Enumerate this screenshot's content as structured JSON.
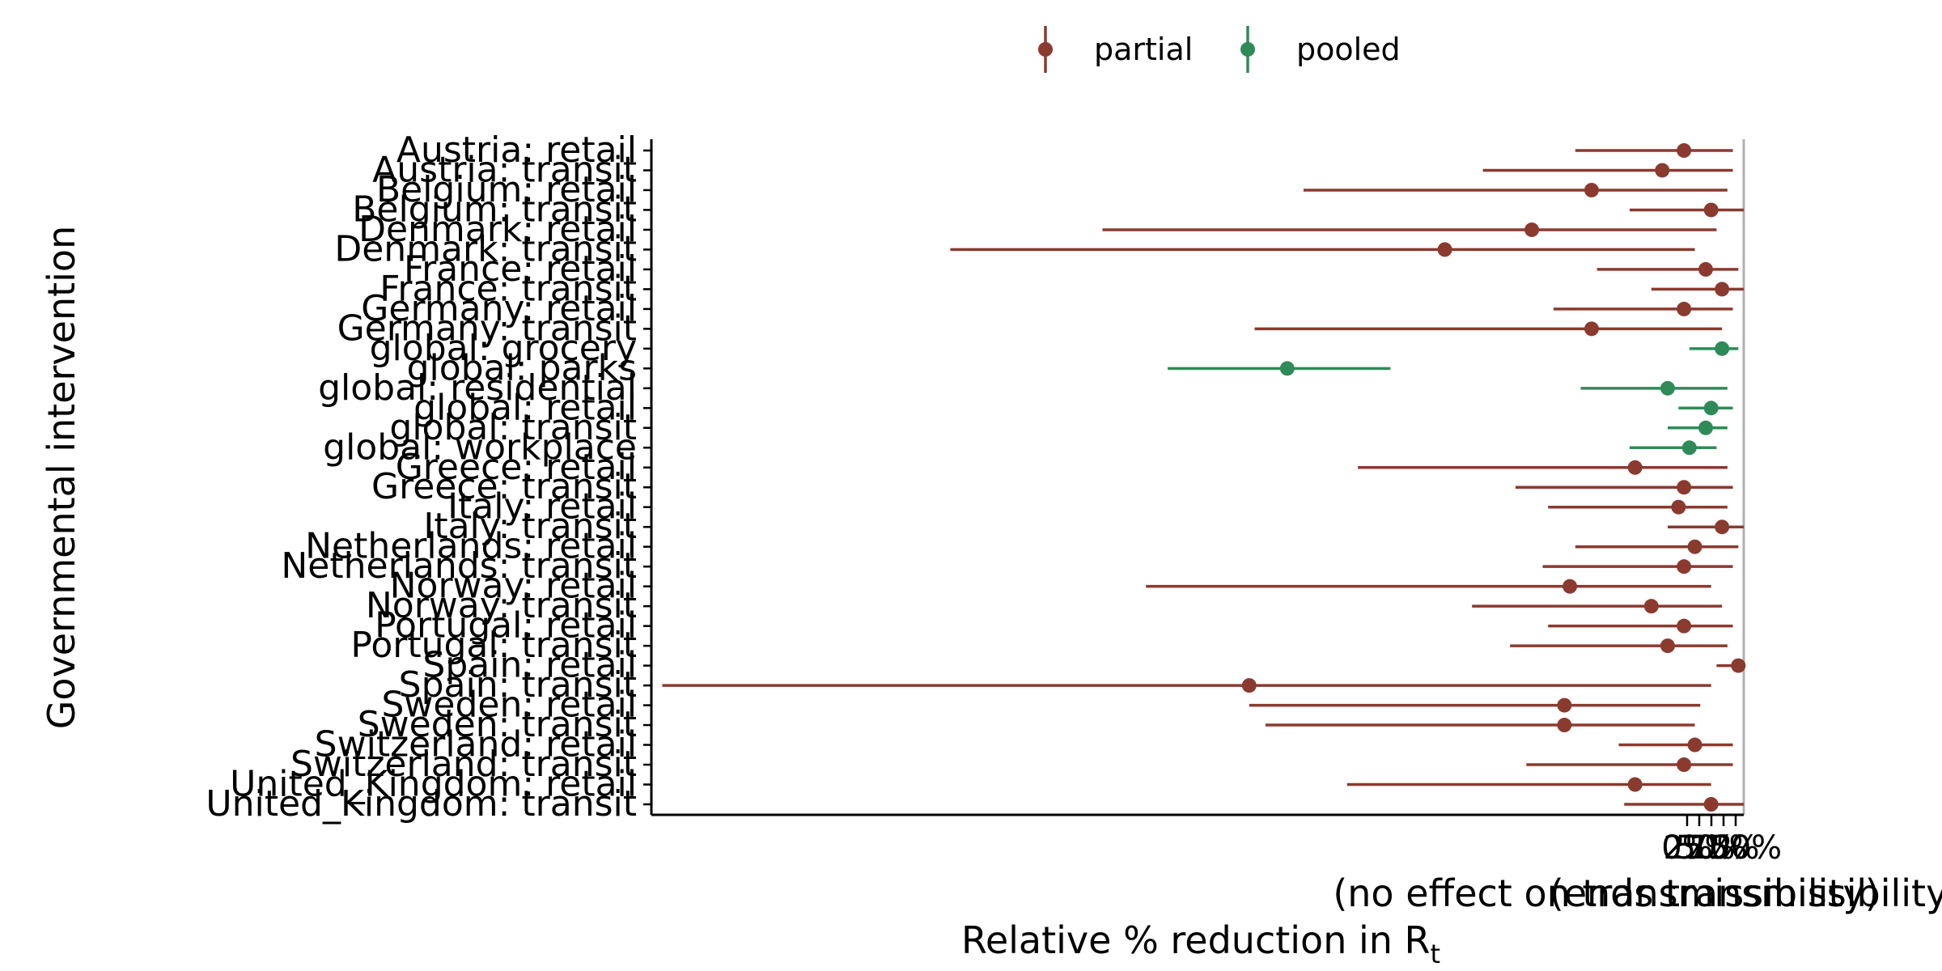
{
  "chart_data": {
    "type": "forest",
    "xlabel": "Relative % reduction in  R",
    "xlabel_subscript": "t",
    "ylabel": "Governmental intervention",
    "x_ticks": [
      "0%",
      "25%",
      "50%",
      "75%",
      "100%"
    ],
    "x_tick_notes": [
      "(no effect on transmissibility)",
      "(ends transmissibility)"
    ],
    "legend": {
      "position": "top",
      "items": [
        {
          "name": "partial",
          "color": "#8b3a2f"
        },
        {
          "name": "pooled",
          "color": "#2e8b57"
        }
      ]
    },
    "categories": [
      "Austria: retail",
      "Austria: transit",
      "Belgium: retail",
      "Belgium: transit",
      "Denmark: retail",
      "Denmark: transit",
      "France: retail",
      "France: transit",
      "Germany: retail",
      "Germany: transit",
      "global: grocery",
      "global: parks",
      "global: residential",
      "global: retail",
      "global: transit",
      "global: workplace",
      "Greece: retail",
      "Greece: transit",
      "Italy: retail",
      "Italy: transit",
      "Netherlands: retail",
      "Netherlands: transit",
      "Norway: retail",
      "Norway: transit",
      "Portugal: retail",
      "Portugal: transit",
      "Spain: retail",
      "Spain: transit",
      "Sweden: retail",
      "Sweden: transit",
      "Switzerland: retail",
      "Switzerland: transit",
      "United_Kingdom: retail",
      "United_Kingdom: transit"
    ],
    "points": [
      {
        "label": "Austria: retail",
        "group": "partial",
        "est": -5.5,
        "lo": -15.5,
        "hi": -1.0
      },
      {
        "label": "Austria: transit",
        "group": "partial",
        "est": -7.5,
        "lo": -24.0,
        "hi": -1.0
      },
      {
        "label": "Belgium: retail",
        "group": "partial",
        "est": -14.0,
        "lo": -40.5,
        "hi": -1.5
      },
      {
        "label": "Belgium: transit",
        "group": "partial",
        "est": -3.0,
        "lo": -10.5,
        "hi": 0.0
      },
      {
        "label": "Denmark: retail",
        "group": "partial",
        "est": -19.5,
        "lo": -59.0,
        "hi": -2.5
      },
      {
        "label": "Denmark: transit",
        "group": "partial",
        "est": -27.5,
        "lo": -73.0,
        "hi": -4.5
      },
      {
        "label": "France: retail",
        "group": "partial",
        "est": -3.5,
        "lo": -13.5,
        "hi": -0.5
      },
      {
        "label": "France: transit",
        "group": "partial",
        "est": -2.0,
        "lo": -8.5,
        "hi": 0.0
      },
      {
        "label": "Germany: retail",
        "group": "partial",
        "est": -5.5,
        "lo": -17.5,
        "hi": -1.0
      },
      {
        "label": "Germany: transit",
        "group": "partial",
        "est": -14.0,
        "lo": -45.0,
        "hi": -2.0
      },
      {
        "label": "global: grocery",
        "group": "pooled",
        "est": -2.0,
        "lo": -5.0,
        "hi": -0.5
      },
      {
        "label": "global: parks",
        "group": "pooled",
        "est": -42.0,
        "lo": -53.0,
        "hi": -32.5
      },
      {
        "label": "global: residential",
        "group": "pooled",
        "est": -7.0,
        "lo": -15.0,
        "hi": -1.5
      },
      {
        "label": "global: retail",
        "group": "pooled",
        "est": -3.0,
        "lo": -6.0,
        "hi": -1.0
      },
      {
        "label": "global: transit",
        "group": "pooled",
        "est": -3.5,
        "lo": -7.0,
        "hi": -1.5
      },
      {
        "label": "global: workplace",
        "group": "pooled",
        "est": -5.0,
        "lo": -10.5,
        "hi": -2.5
      },
      {
        "label": "Greece: retail",
        "group": "partial",
        "est": -10.0,
        "lo": -35.5,
        "hi": -1.5
      },
      {
        "label": "Greece: transit",
        "group": "partial",
        "est": -5.5,
        "lo": -21.0,
        "hi": -1.0
      },
      {
        "label": "Italy: retail",
        "group": "partial",
        "est": -6.0,
        "lo": -18.0,
        "hi": -1.5
      },
      {
        "label": "Italy: transit",
        "group": "partial",
        "est": -2.0,
        "lo": -7.0,
        "hi": 0.0
      },
      {
        "label": "Netherlands: retail",
        "group": "partial",
        "est": -4.5,
        "lo": -15.5,
        "hi": -0.5
      },
      {
        "label": "Netherlands: transit",
        "group": "partial",
        "est": -5.5,
        "lo": -18.5,
        "hi": -1.0
      },
      {
        "label": "Norway: retail",
        "group": "partial",
        "est": -16.0,
        "lo": -55.0,
        "hi": -3.0
      },
      {
        "label": "Norway: transit",
        "group": "partial",
        "est": -8.5,
        "lo": -25.0,
        "hi": -2.0
      },
      {
        "label": "Portugal: retail",
        "group": "partial",
        "est": -5.5,
        "lo": -18.0,
        "hi": -1.0
      },
      {
        "label": "Portugal: transit",
        "group": "partial",
        "est": -7.0,
        "lo": -21.5,
        "hi": -1.5
      },
      {
        "label": "Spain: retail",
        "group": "partial",
        "est": -0.5,
        "lo": -2.5,
        "hi": 0.0
      },
      {
        "label": "Spain: transit",
        "group": "partial",
        "est": -45.5,
        "lo": -99.5,
        "hi": -3.0
      },
      {
        "label": "Sweden: retail",
        "group": "partial",
        "est": -16.5,
        "lo": -45.5,
        "hi": -4.0
      },
      {
        "label": "Sweden: transit",
        "group": "partial",
        "est": -16.5,
        "lo": -44.0,
        "hi": -4.5
      },
      {
        "label": "Switzerland: retail",
        "group": "partial",
        "est": -4.5,
        "lo": -11.5,
        "hi": -1.0
      },
      {
        "label": "Switzerland: transit",
        "group": "partial",
        "est": -5.5,
        "lo": -20.0,
        "hi": -1.0
      },
      {
        "label": "United_Kingdom: retail",
        "group": "partial",
        "est": -10.0,
        "lo": -36.5,
        "hi": -3.0
      },
      {
        "label": "United_Kingdom: transit",
        "group": "partial",
        "est": -3.0,
        "lo": -11.0,
        "hi": 0.0
      }
    ],
    "xlim": [
      -100,
      1
    ],
    "reference_line": 0,
    "grid": false
  }
}
